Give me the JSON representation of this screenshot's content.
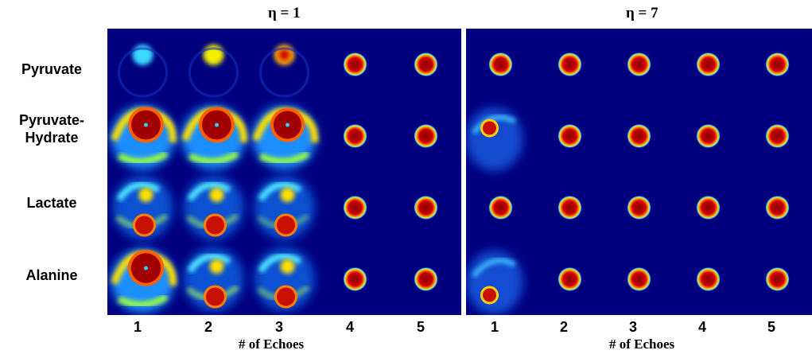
{
  "panels": [
    {
      "title": "η = 1",
      "x_axis_label": "# of Echoes",
      "echo_labels": [
        "1",
        "2",
        "3",
        "4",
        "5"
      ],
      "rows": [
        {
          "metabolite": "Pyruvate",
          "cells": [
            {
              "type": "blob",
              "intensity": 0.55,
              "spot": [
                0.5,
                0.4
              ]
            },
            {
              "type": "blob",
              "intensity": 0.7,
              "spot": [
                0.5,
                0.4
              ]
            },
            {
              "type": "blob",
              "intensity": 0.85,
              "spot": [
                0.5,
                0.4
              ]
            },
            {
              "type": "dot"
            },
            {
              "type": "dot"
            }
          ]
        },
        {
          "metabolite": "Pyruvate-Hydrate",
          "cells": [
            {
              "type": "heart",
              "intensity": 0.9
            },
            {
              "type": "heart",
              "intensity": 0.9
            },
            {
              "type": "heart",
              "intensity": 0.75
            },
            {
              "type": "dot"
            },
            {
              "type": "dot"
            }
          ]
        },
        {
          "metabolite": "Lactate",
          "cells": [
            {
              "type": "mixed",
              "intensity": 0.6
            },
            {
              "type": "mixed",
              "intensity": 0.55
            },
            {
              "type": "mixed",
              "intensity": 0.4
            },
            {
              "type": "dot"
            },
            {
              "type": "dot"
            }
          ]
        },
        {
          "metabolite": "Alanine",
          "cells": [
            {
              "type": "heart",
              "intensity": 0.95
            },
            {
              "type": "mixed",
              "intensity": 0.65
            },
            {
              "type": "mixed",
              "intensity": 0.5
            },
            {
              "type": "dot"
            },
            {
              "type": "dot"
            }
          ]
        }
      ]
    },
    {
      "title": "η = 7",
      "x_axis_label": "# of Echoes",
      "echo_labels": [
        "1",
        "2",
        "3",
        "4",
        "5"
      ],
      "rows": [
        {
          "metabolite": "Pyruvate",
          "cells": [
            {
              "type": "dot"
            },
            {
              "type": "dot"
            },
            {
              "type": "dot"
            },
            {
              "type": "dot"
            },
            {
              "type": "dot"
            }
          ]
        },
        {
          "metabolite": "Pyruvate-Hydrate",
          "cells": [
            {
              "type": "faint",
              "intensity": 0.35
            },
            {
              "type": "dot"
            },
            {
              "type": "dot"
            },
            {
              "type": "dot"
            },
            {
              "type": "dot"
            }
          ]
        },
        {
          "metabolite": "Lactate",
          "cells": [
            {
              "type": "dot"
            },
            {
              "type": "dot"
            },
            {
              "type": "dot"
            },
            {
              "type": "dot"
            },
            {
              "type": "dot"
            }
          ]
        },
        {
          "metabolite": "Alanine",
          "cells": [
            {
              "type": "faint",
              "intensity": 0.45
            },
            {
              "type": "dot"
            },
            {
              "type": "dot"
            },
            {
              "type": "dot"
            },
            {
              "type": "dot"
            }
          ]
        }
      ]
    }
  ],
  "row_labels": [
    {
      "lines": [
        "Pyruvate"
      ]
    },
    {
      "lines": [
        "Pyruvate-",
        "Hydrate"
      ]
    },
    {
      "lines": [
        "Lactate"
      ]
    },
    {
      "lines": [
        "Alanine"
      ]
    }
  ],
  "colors": {
    "background": "#00007f",
    "colormap": "jet",
    "dot_core": "#a00000",
    "dot_ring": "#ffd400"
  }
}
